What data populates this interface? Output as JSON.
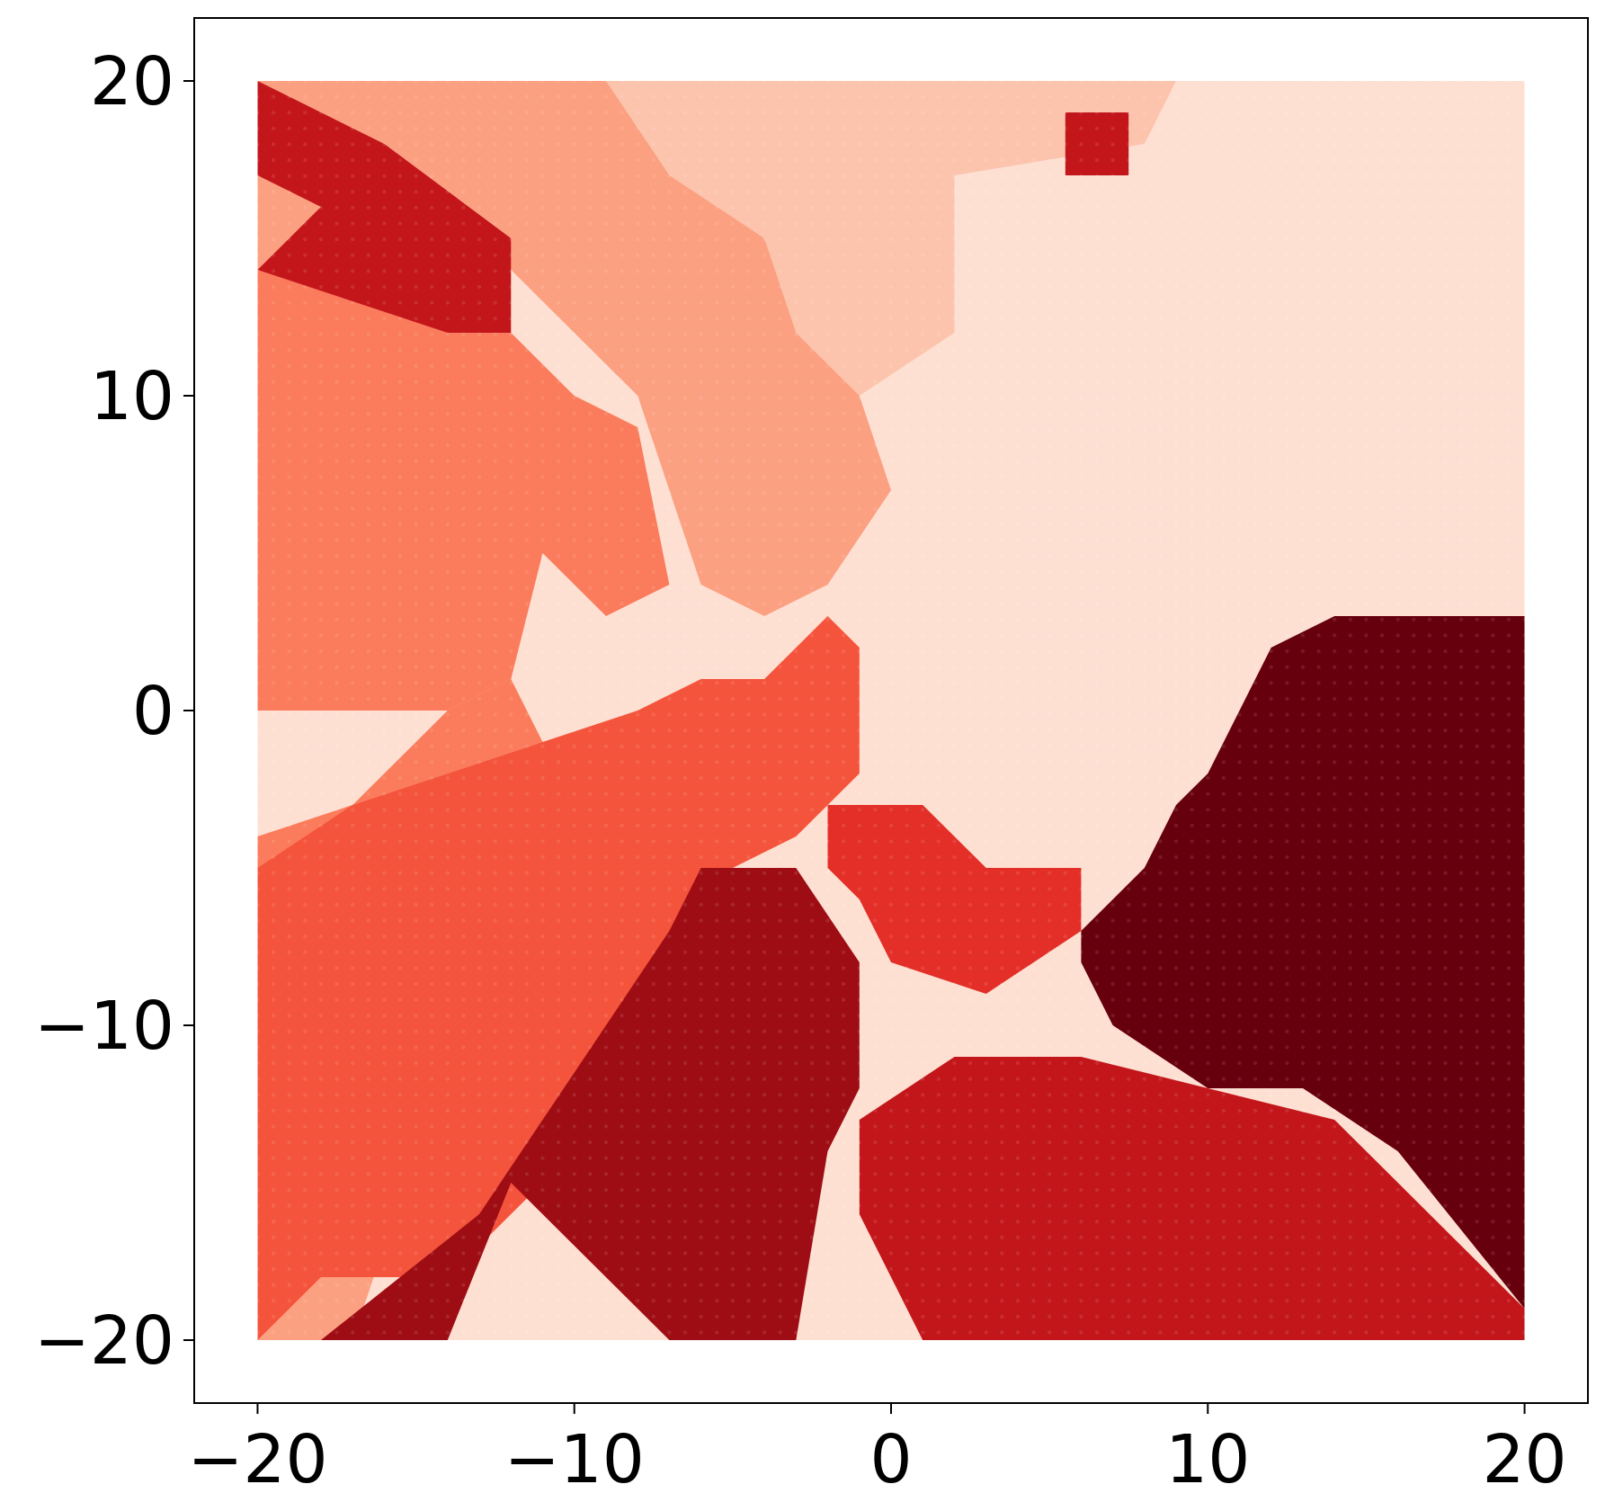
{
  "chart_data": {
    "type": "scatter",
    "subtype": "dense-grid-region-map",
    "title": "",
    "xlabel": "",
    "ylabel": "",
    "xlim": [
      -22,
      22
    ],
    "ylim": [
      -22,
      22
    ],
    "grid": false,
    "legend": "none",
    "colormap": "Reds",
    "grid_points": {
      "x_range": [
        -20,
        20
      ],
      "y_range": [
        -20,
        20
      ],
      "step": 0.5
    },
    "x_ticks": [
      {
        "value": -20,
        "label": "−20"
      },
      {
        "value": -10,
        "label": "−10"
      },
      {
        "value": 0,
        "label": "0"
      },
      {
        "value": 10,
        "label": "10"
      },
      {
        "value": 20,
        "label": "20"
      }
    ],
    "y_ticks": [
      {
        "value": -20,
        "label": "−20"
      },
      {
        "value": -10,
        "label": "−10"
      },
      {
        "value": 0,
        "label": "0"
      },
      {
        "value": 10,
        "label": "10"
      },
      {
        "value": 20,
        "label": "20"
      }
    ],
    "class_colors": [
      "#fff4ef",
      "#fee0d3",
      "#fcc4ad",
      "#fca082",
      "#fb7c5c",
      "#f5543c",
      "#e32f27",
      "#c3161b",
      "#9e0d14",
      "#67000d"
    ],
    "regions": [
      {
        "class": 1,
        "points": [
          [
            -20,
            20
          ],
          [
            20,
            20
          ],
          [
            20,
            -20
          ],
          [
            -20,
            -20
          ]
        ]
      },
      {
        "class": 2,
        "points": [
          [
            -9,
            20
          ],
          [
            9,
            20
          ],
          [
            8,
            18
          ],
          [
            2,
            17
          ],
          [
            2,
            12
          ],
          [
            -1,
            10
          ],
          [
            -3,
            12
          ],
          [
            -8,
            16
          ],
          [
            -9,
            19
          ]
        ]
      },
      {
        "class": 3,
        "points": [
          [
            -20,
            20
          ],
          [
            -9,
            20
          ],
          [
            -7,
            17
          ],
          [
            -4,
            15
          ],
          [
            -3,
            12
          ],
          [
            -1,
            10
          ],
          [
            0,
            7
          ],
          [
            -2,
            4
          ],
          [
            -4,
            3
          ],
          [
            -6,
            4
          ],
          [
            -8,
            10
          ],
          [
            -10,
            12
          ],
          [
            -12,
            14
          ],
          [
            -14,
            13
          ],
          [
            -20,
            14
          ]
        ]
      },
      {
        "class": 3,
        "points": [
          [
            -20,
            -20
          ],
          [
            -20,
            -15
          ],
          [
            -18,
            -16
          ],
          [
            -16,
            -17
          ],
          [
            -17,
            -20
          ]
        ]
      },
      {
        "class": 4,
        "points": [
          [
            -20,
            14
          ],
          [
            -14,
            13
          ],
          [
            -12,
            12
          ],
          [
            -10,
            10
          ],
          [
            -8,
            9
          ],
          [
            -7,
            4
          ],
          [
            -9,
            3
          ],
          [
            -11,
            5
          ],
          [
            -12,
            1
          ],
          [
            -14,
            0
          ],
          [
            -18,
            0
          ],
          [
            -20,
            0
          ]
        ]
      },
      {
        "class": 4,
        "points": [
          [
            -20,
            -5
          ],
          [
            -18,
            -4
          ],
          [
            -16,
            -2
          ],
          [
            -14,
            0
          ],
          [
            -12,
            1
          ],
          [
            -11,
            -1
          ],
          [
            -14,
            -2
          ],
          [
            -17,
            -3
          ],
          [
            -20,
            -4
          ]
        ]
      },
      {
        "class": 5,
        "points": [
          [
            -20,
            -5
          ],
          [
            -17,
            -3
          ],
          [
            -14,
            -2
          ],
          [
            -11,
            -1
          ],
          [
            -8,
            0
          ],
          [
            -6,
            1
          ],
          [
            -4,
            1
          ],
          [
            -2,
            3
          ],
          [
            -1,
            2
          ],
          [
            -1,
            -2
          ],
          [
            -3,
            -4
          ],
          [
            -5,
            -5
          ],
          [
            -7,
            -8
          ],
          [
            -9,
            -12
          ],
          [
            -11,
            -15
          ],
          [
            -13,
            -17
          ],
          [
            -15,
            -18
          ],
          [
            -18,
            -18
          ],
          [
            -20,
            -20
          ]
        ]
      },
      {
        "class": 6,
        "points": [
          [
            -2,
            -3
          ],
          [
            1,
            -3
          ],
          [
            3,
            -5
          ],
          [
            6,
            -5
          ],
          [
            6,
            -7
          ],
          [
            3,
            -9
          ],
          [
            0,
            -8
          ],
          [
            -1,
            -6
          ],
          [
            -2,
            -5
          ]
        ]
      },
      {
        "class": 7,
        "points": [
          [
            -1,
            -13
          ],
          [
            2,
            -11
          ],
          [
            6,
            -11
          ],
          [
            10,
            -12
          ],
          [
            14,
            -13
          ],
          [
            20,
            -19
          ],
          [
            20,
            -20
          ],
          [
            1,
            -20
          ],
          [
            -1,
            -16
          ]
        ]
      },
      {
        "class": 7,
        "points": [
          [
            -20,
            20
          ],
          [
            -16,
            18
          ],
          [
            -12,
            15
          ],
          [
            -12,
            12
          ],
          [
            -14,
            12
          ],
          [
            -17,
            13
          ],
          [
            -20,
            14
          ],
          [
            -18,
            16
          ],
          [
            -20,
            17
          ]
        ]
      },
      {
        "class": 7,
        "points": [
          [
            5.5,
            19
          ],
          [
            7.5,
            19
          ],
          [
            7.5,
            17
          ],
          [
            5.5,
            17
          ]
        ]
      },
      {
        "class": 8,
        "points": [
          [
            -18,
            -20
          ],
          [
            -13,
            -16
          ],
          [
            -11,
            -13
          ],
          [
            -9,
            -10
          ],
          [
            -7,
            -7
          ],
          [
            -6,
            -5
          ],
          [
            -3,
            -5
          ],
          [
            -1,
            -8
          ],
          [
            -1,
            -12
          ],
          [
            -2,
            -14
          ],
          [
            -3,
            -20
          ],
          [
            -7,
            -20
          ],
          [
            -10,
            -17
          ],
          [
            -12,
            -15
          ],
          [
            -14,
            -20
          ]
        ]
      },
      {
        "class": 9,
        "points": [
          [
            6,
            -7
          ],
          [
            8,
            -5
          ],
          [
            9,
            -3
          ],
          [
            10,
            -2
          ],
          [
            11,
            0
          ],
          [
            12,
            2
          ],
          [
            14,
            3
          ],
          [
            17,
            3
          ],
          [
            20,
            3
          ],
          [
            20,
            -19
          ],
          [
            16,
            -14
          ],
          [
            13,
            -12
          ],
          [
            10,
            -12
          ],
          [
            7,
            -10
          ],
          [
            6,
            -8
          ]
        ]
      }
    ]
  }
}
